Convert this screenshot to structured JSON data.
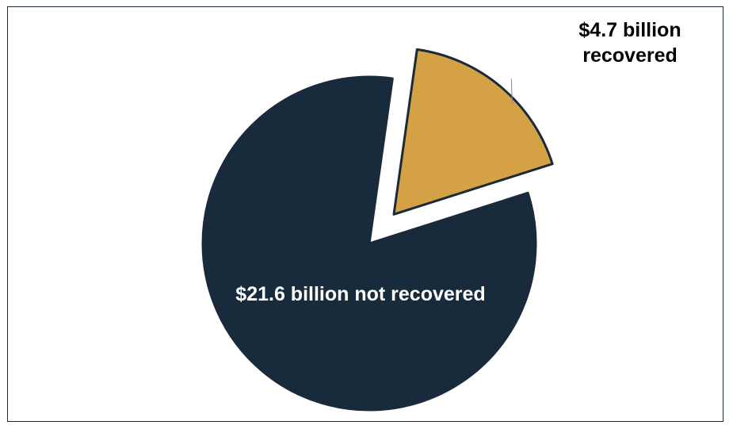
{
  "chart_data": {
    "type": "pie",
    "title": "",
    "unit": "billion USD",
    "slices": [
      {
        "name": "recovered",
        "value": 4.7,
        "label_lines": [
          "$4.7 billion",
          "recovered"
        ],
        "color": "#d4a244",
        "exploded": true
      },
      {
        "name": "not recovered",
        "value": 21.6,
        "label_lines": [
          "$21.6 billion not recovered"
        ],
        "color": "#182b3d",
        "exploded": false
      }
    ],
    "slice_outline_color": "#1b2a3b",
    "legend": "none"
  }
}
